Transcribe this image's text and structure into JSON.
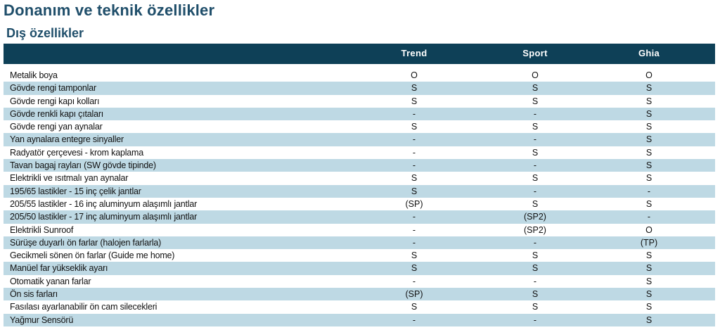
{
  "page": {
    "title": "Donanım ve teknik özellikler",
    "section": "Dış özellikler"
  },
  "table": {
    "columns": [
      "Trend",
      "Sport",
      "Ghia"
    ],
    "rows": [
      {
        "feature": "Metalik boya",
        "values": [
          "O",
          "O",
          "O"
        ]
      },
      {
        "feature": "Gövde rengi tamponlar",
        "values": [
          "S",
          "S",
          "S"
        ]
      },
      {
        "feature": "Gövde rengi kapı kolları",
        "values": [
          "S",
          "S",
          "S"
        ]
      },
      {
        "feature": "Gövde renkli kapı çıtaları",
        "values": [
          "-",
          "-",
          "S"
        ]
      },
      {
        "feature": "Gövde rengi yan aynalar",
        "values": [
          "S",
          "S",
          "S"
        ]
      },
      {
        "feature": "Yan aynalara entegre sinyaller",
        "values": [
          "-",
          "-",
          "S"
        ]
      },
      {
        "feature": "Radyatör çerçevesi - krom kaplama",
        "values": [
          "-",
          "S",
          "S"
        ]
      },
      {
        "feature": "Tavan bagaj rayları (SW gövde tipinde)",
        "values": [
          "-",
          "-",
          "S"
        ]
      },
      {
        "feature": "Elektrikli ve ısıtmalı yan aynalar",
        "values": [
          "S",
          "S",
          "S"
        ]
      },
      {
        "feature": "195/65 lastikler - 15 inç çelik jantlar",
        "values": [
          "S",
          "-",
          "-"
        ]
      },
      {
        "feature": "205/55 lastikler - 16 inç aluminyum alaşımlı jantlar",
        "values": [
          "(SP)",
          "S",
          "S"
        ]
      },
      {
        "feature": "205/50 lastikler - 17 inç aluminyum alaşımlı jantlar",
        "values": [
          "-",
          "(SP2)",
          "-"
        ]
      },
      {
        "feature": "Elektrikli Sunroof",
        "values": [
          "-",
          "(SP2)",
          "O"
        ]
      },
      {
        "feature": "Sürüşe duyarlı ön farlar (halojen farlarla)",
        "values": [
          "-",
          "-",
          "(TP)"
        ]
      },
      {
        "feature": "Gecikmeli sönen ön farlar (Guide me home)",
        "values": [
          "S",
          "S",
          "S"
        ]
      },
      {
        "feature": "Manüel far yükseklik ayarı",
        "values": [
          "S",
          "S",
          "S"
        ]
      },
      {
        "feature": "Otomatik yanan farlar",
        "values": [
          "-",
          "-",
          "S"
        ]
      },
      {
        "feature": "Ön sis farları",
        "values": [
          "(SP)",
          "S",
          "S"
        ]
      },
      {
        "feature": "Fasılası ayarlanabilir ön cam silecekleri",
        "values": [
          "S",
          "S",
          "S"
        ]
      },
      {
        "feature": "Yağmur Sensörü",
        "values": [
          "-",
          "-",
          "S"
        ]
      }
    ]
  },
  "colors": {
    "title": "#1f4e6a",
    "header_bg": "#0e4057",
    "alt_row_bg": "#bed9e4"
  }
}
